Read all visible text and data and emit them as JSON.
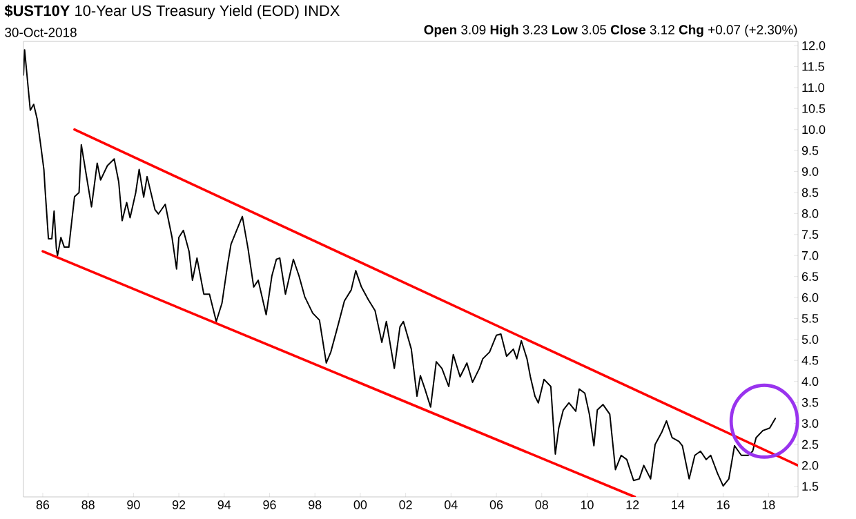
{
  "chart_data": {
    "type": "line",
    "title": "**$UST10Y** 10-Year US Treasury Yield (EOD) INDX",
    "annotations": [
      "30-Oct-2018",
      "**Open** 3.09  **High** 3.23  **Low** 3.05  **Close** 3.12  **Chg** +0.07 (+2.30%)"
    ],
    "xlim": [
      1985.15,
      2019.3
    ],
    "ylim": [
      1.25,
      12.1
    ],
    "xticks": [
      {
        "value": 1986,
        "label": "86"
      },
      {
        "value": 1988,
        "label": "88"
      },
      {
        "value": 1990,
        "label": "90"
      },
      {
        "value": 1992,
        "label": "92"
      },
      {
        "value": 1994,
        "label": "94"
      },
      {
        "value": 1996,
        "label": "96"
      },
      {
        "value": 1998,
        "label": "98"
      },
      {
        "value": 2000,
        "label": "00"
      },
      {
        "value": 2002,
        "label": "02"
      },
      {
        "value": 2004,
        "label": "04"
      },
      {
        "value": 2006,
        "label": "06"
      },
      {
        "value": 2008,
        "label": "08"
      },
      {
        "value": 2010,
        "label": "10"
      },
      {
        "value": 2012,
        "label": "12"
      },
      {
        "value": 2014,
        "label": "14"
      },
      {
        "value": 2016,
        "label": "16"
      },
      {
        "value": 2018,
        "label": "18"
      }
    ],
    "yticks": [
      1.5,
      {
        "value": 2,
        "label": "2.0"
      },
      2.5,
      {
        "value": 3,
        "label": "3.0"
      },
      3.5,
      {
        "value": 4,
        "label": "4.0"
      },
      4.5,
      {
        "value": 5,
        "label": "5.0"
      },
      5.5,
      {
        "value": 6,
        "label": "6.0"
      },
      6.5,
      {
        "value": 7,
        "label": "7.0"
      },
      7.5,
      {
        "value": 8,
        "label": "8.0"
      },
      8.5,
      {
        "value": 9,
        "label": "9.0"
      },
      9.5,
      {
        "value": 10,
        "label": "10.0"
      },
      10.5,
      {
        "value": 11,
        "label": "11.0"
      },
      11.5,
      {
        "value": 12,
        "label": "12.0"
      }
    ],
    "x": [
      1985.15,
      1985.2,
      1985.45,
      1985.6,
      1985.75,
      1985.9,
      1986.05,
      1986.1,
      1986.25,
      1986.4,
      1986.5,
      1986.6,
      1986.65,
      1986.8,
      1986.95,
      1987.15,
      1987.4,
      1987.6,
      1987.7,
      1987.9,
      1988.15,
      1988.4,
      1988.55,
      1988.85,
      1989.15,
      1989.35,
      1989.5,
      1989.7,
      1989.85,
      1990.1,
      1990.25,
      1990.45,
      1990.6,
      1990.95,
      1991.1,
      1991.4,
      1991.7,
      1991.9,
      1992.0,
      1992.2,
      1992.45,
      1992.6,
      1992.8,
      1993.1,
      1993.35,
      1993.65,
      1993.9,
      1994.15,
      1994.3,
      1994.55,
      1994.8,
      1995.05,
      1995.3,
      1995.5,
      1995.85,
      1996.1,
      1996.3,
      1996.45,
      1996.7,
      1997.05,
      1997.3,
      1997.55,
      1997.9,
      1998.2,
      1998.5,
      1998.7,
      1999.0,
      1999.3,
      1999.6,
      1999.8,
      2000.05,
      2000.35,
      2000.65,
      2000.95,
      2001.15,
      2001.5,
      2001.75,
      2001.9,
      2002.25,
      2002.5,
      2002.65,
      2002.85,
      2003.1,
      2003.35,
      2003.6,
      2003.9,
      2004.1,
      2004.4,
      2004.7,
      2004.95,
      2005.25,
      2005.4,
      2005.7,
      2006.0,
      2006.2,
      2006.45,
      2006.75,
      2006.9,
      2007.1,
      2007.35,
      2007.5,
      2007.7,
      2007.85,
      2008.1,
      2008.4,
      2008.6,
      2008.75,
      2008.95,
      2009.2,
      2009.5,
      2009.65,
      2009.9,
      2010.1,
      2010.3,
      2010.45,
      2010.7,
      2011.0,
      2011.25,
      2011.5,
      2011.75,
      2012.05,
      2012.3,
      2012.5,
      2012.8,
      2013.0,
      2013.3,
      2013.5,
      2013.75,
      2014.05,
      2014.2,
      2014.5,
      2014.75,
      2015.0,
      2015.25,
      2015.45,
      2015.75,
      2016.0,
      2016.25,
      2016.5,
      2016.8,
      2017.1,
      2017.3,
      2017.45,
      2017.75,
      2018.05,
      2018.3
    ],
    "series": [
      {
        "color": "#000000",
        "values": [
          11.3,
          11.9,
          10.46,
          10.6,
          10.26,
          9.67,
          9.05,
          8.6,
          7.4,
          7.4,
          8.06,
          7.17,
          7.0,
          7.43,
          7.2,
          7.2,
          8.4,
          8.5,
          9.64,
          8.98,
          8.16,
          9.2,
          8.8,
          9.14,
          9.3,
          8.75,
          7.83,
          8.26,
          7.9,
          8.5,
          9.05,
          8.39,
          8.88,
          8.09,
          7.99,
          8.22,
          7.43,
          6.68,
          7.43,
          7.6,
          7.1,
          6.41,
          6.94,
          6.08,
          6.08,
          5.43,
          5.86,
          6.78,
          7.27,
          7.6,
          7.93,
          7.17,
          6.25,
          6.41,
          5.59,
          6.51,
          6.91,
          6.94,
          6.08,
          6.91,
          6.51,
          6.02,
          5.63,
          5.46,
          4.44,
          4.7,
          5.3,
          5.92,
          6.18,
          6.64,
          6.25,
          5.95,
          5.69,
          4.93,
          5.43,
          4.31,
          5.3,
          5.43,
          4.77,
          3.65,
          4.14,
          3.82,
          3.39,
          4.47,
          4.31,
          3.88,
          4.64,
          4.11,
          4.44,
          3.98,
          4.31,
          4.54,
          4.7,
          5.1,
          5.13,
          4.6,
          4.77,
          4.54,
          4.97,
          4.54,
          4.11,
          3.65,
          3.49,
          4.05,
          3.88,
          2.27,
          2.89,
          3.32,
          3.49,
          3.29,
          3.82,
          3.72,
          3.22,
          2.47,
          3.32,
          3.45,
          3.22,
          1.9,
          2.24,
          2.14,
          1.64,
          1.68,
          2.0,
          1.68,
          2.5,
          2.8,
          3.06,
          2.66,
          2.57,
          2.47,
          1.68,
          2.24,
          2.34,
          2.14,
          2.24,
          1.81,
          1.51,
          1.68,
          2.47,
          2.24,
          2.24,
          2.34,
          2.66,
          2.83,
          2.89,
          3.12
        ]
      },
      {
        "type": "line",
        "color": "#ff0000",
        "x": [
          1987.4,
          2019.3
        ],
        "values": [
          10.0,
          2.0
        ]
      },
      {
        "type": "line",
        "color": "#ff0000",
        "x": [
          1986.0,
          2012.1
        ],
        "values": [
          7.1,
          1.25
        ]
      }
    ]
  }
}
